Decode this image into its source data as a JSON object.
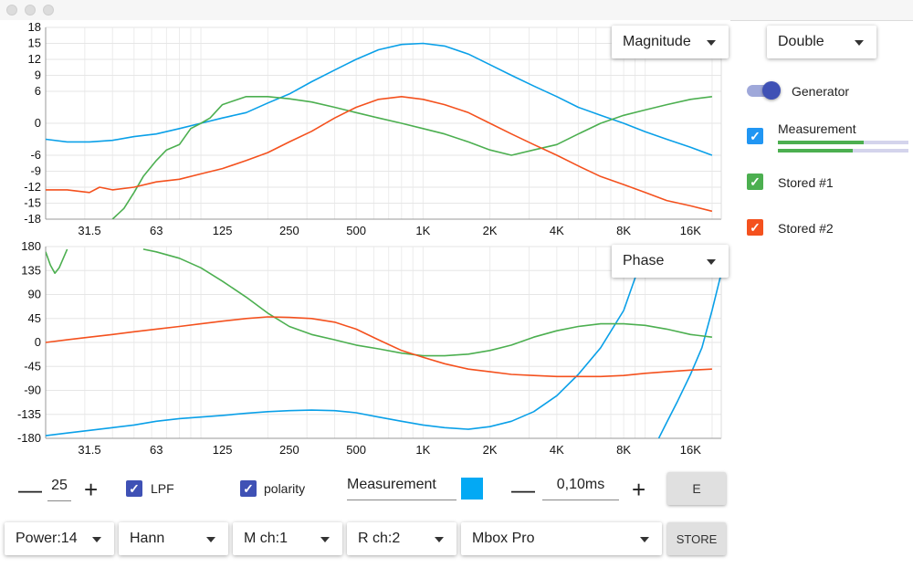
{
  "window": {
    "title": ""
  },
  "colors": {
    "measurement": "#0aa0e8",
    "stored1": "#4caf50",
    "stored2": "#f4511e",
    "checkbox_blue": "#2196f3",
    "checkbox_indigo": "#3f51b5",
    "swatch": "#03a9f4"
  },
  "magnitude_plot": {
    "view_dropdown": "Magnitude",
    "y_ticks": [
      "18",
      "15",
      "12",
      "9",
      "6",
      "0",
      "-6",
      "-9",
      "-12",
      "-15",
      "-18"
    ],
    "x_ticks": [
      "31.5",
      "63",
      "125",
      "250",
      "500",
      "1K",
      "2K",
      "4K",
      "8K",
      "16K"
    ]
  },
  "phase_plot": {
    "view_dropdown": "Phase",
    "y_ticks": [
      "180",
      "135",
      "90",
      "45",
      "0",
      "-45",
      "-90",
      "-135",
      "-180"
    ],
    "x_ticks": [
      "31.5",
      "63",
      "125",
      "250",
      "500",
      "1K",
      "2K",
      "4K",
      "8K",
      "16K"
    ]
  },
  "chart_data": [
    {
      "type": "line",
      "title": "",
      "x_scale": "log",
      "xlim": [
        20,
        22000
      ],
      "ylim": [
        -18,
        18
      ],
      "series": [
        {
          "name": "Measurement",
          "color": "#0aa0e8",
          "x": [
            20,
            25,
            31.5,
            40,
            50,
            63,
            80,
            100,
            125,
            160,
            200,
            250,
            315,
            400,
            500,
            630,
            800,
            1000,
            1250,
            1600,
            2000,
            2500,
            3150,
            4000,
            5000,
            6300,
            8000,
            10000,
            12500,
            16000,
            20000
          ],
          "y": [
            -3,
            -3.5,
            -3.5,
            -3.2,
            -2.5,
            -2,
            -1,
            0,
            1,
            2,
            3.8,
            5.5,
            7.8,
            10,
            12,
            13.8,
            14.8,
            15,
            14.5,
            13,
            11,
            9,
            7,
            5,
            3,
            1.5,
            0,
            -1.6,
            -3,
            -4.5,
            -6
          ]
        },
        {
          "name": "Stored #1",
          "color": "#4caf50",
          "x": [
            40,
            45,
            50,
            55,
            63,
            70,
            80,
            90,
            100,
            110,
            125,
            140,
            160,
            200,
            250,
            315,
            400,
            500,
            630,
            800,
            1000,
            1250,
            1600,
            2000,
            2500,
            3150,
            4000,
            5000,
            6300,
            8000,
            10000,
            12500,
            16000,
            20000
          ],
          "y": [
            -18,
            -16,
            -13,
            -10,
            -7,
            -5,
            -4,
            -1,
            0,
            1,
            3.5,
            4.2,
            5,
            5,
            4.6,
            4,
            3,
            2,
            1,
            0,
            -1,
            -2,
            -3.5,
            -5,
            -6,
            -5,
            -4,
            -2,
            0,
            1.5,
            2.5,
            3.5,
            4.5,
            5
          ]
        },
        {
          "name": "Stored #2",
          "color": "#f4511e",
          "x": [
            20,
            25,
            31.5,
            35,
            40,
            50,
            63,
            80,
            100,
            125,
            160,
            200,
            250,
            315,
            400,
            500,
            630,
            800,
            1000,
            1250,
            1600,
            2000,
            2500,
            3150,
            4000,
            5000,
            6300,
            8000,
            10000,
            12500,
            16000,
            20000
          ],
          "y": [
            -12.5,
            -12.5,
            -13,
            -12,
            -12.5,
            -12,
            -11,
            -10.5,
            -9.5,
            -8.5,
            -7,
            -5.5,
            -3.5,
            -1.5,
            1,
            3,
            4.5,
            5,
            4.5,
            3.5,
            2,
            0,
            -2,
            -4,
            -6,
            -8,
            -10,
            -11.5,
            -13,
            -14.5,
            -15.5,
            -16.5
          ]
        }
      ]
    },
    {
      "type": "line",
      "title": "",
      "x_scale": "log",
      "xlim": [
        20,
        22000
      ],
      "ylim": [
        -180,
        180
      ],
      "series": [
        {
          "name": "Measurement",
          "color": "#0aa0e8",
          "x": [
            20,
            25,
            31.5,
            40,
            50,
            63,
            80,
            100,
            125,
            160,
            200,
            250,
            315,
            400,
            500,
            630,
            800,
            1000,
            1250,
            1600,
            2000,
            2500,
            3150,
            4000,
            5000,
            6300,
            8000,
            10000
          ],
          "y": [
            -175,
            -170,
            -165,
            -160,
            -155,
            -148,
            -143,
            -140,
            -137,
            -133,
            -130,
            -128,
            -127,
            -128,
            -132,
            -140,
            -148,
            -155,
            -160,
            -163,
            -158,
            -148,
            -130,
            -100,
            -60,
            -10,
            60,
            175
          ]
        },
        {
          "name": "Measurement (wrapped)",
          "color": "#0aa0e8",
          "x": [
            11500,
            12500,
            14000,
            16000,
            18000,
            20000,
            22000
          ],
          "y": [
            -180,
            -150,
            -110,
            -60,
            -10,
            60,
            130
          ]
        },
        {
          "name": "Stored #1",
          "color": "#4caf50",
          "x": [
            20,
            21,
            22,
            23,
            25
          ],
          "y": [
            170,
            145,
            130,
            140,
            175
          ]
        },
        {
          "name": "Stored #1",
          "color": "#4caf50",
          "x": [
            55,
            63,
            80,
            100,
            125,
            160,
            200,
            250,
            315,
            400,
            500,
            630,
            800,
            1000,
            1250,
            1600,
            2000,
            2500,
            3150,
            4000,
            5000,
            6300,
            8000,
            10000,
            12500,
            16000,
            20000
          ],
          "y": [
            175,
            170,
            158,
            140,
            115,
            85,
            55,
            30,
            15,
            5,
            -5,
            -12,
            -20,
            -25,
            -25,
            -22,
            -15,
            -5,
            10,
            22,
            30,
            35,
            35,
            32,
            25,
            15,
            10
          ]
        },
        {
          "name": "Stored #2",
          "color": "#f4511e",
          "x": [
            20,
            25,
            31.5,
            40,
            50,
            63,
            80,
            100,
            125,
            160,
            200,
            250,
            315,
            400,
            500,
            630,
            800,
            1000,
            1250,
            1600,
            2000,
            2500,
            3150,
            4000,
            5000,
            6300,
            8000,
            10000,
            12500,
            16000,
            20000
          ],
          "y": [
            0,
            5,
            10,
            15,
            20,
            25,
            30,
            35,
            40,
            45,
            48,
            47,
            45,
            38,
            25,
            5,
            -15,
            -28,
            -40,
            -50,
            -55,
            -60,
            -62,
            -64,
            -64,
            -64,
            -62,
            -58,
            -55,
            -52,
            -50
          ]
        }
      ]
    }
  ],
  "right_panel": {
    "mode_dropdown": "Double",
    "generator_label": "Generator",
    "generator_on": true,
    "measurement_label": "Measurement",
    "measurement_checked": true,
    "meter_levels": [
      0.66,
      0.57
    ],
    "stored1_label": "Stored #1",
    "stored1_checked": true,
    "stored2_label": "Stored #2",
    "stored2_checked": true
  },
  "controls": {
    "minus": "—",
    "plus": "+",
    "averaging_value": "25",
    "lpf_label": "LPF",
    "lpf_checked": true,
    "polarity_label": "polarity",
    "polarity_checked": true,
    "name_field_value": "Measurement",
    "delay_value": "0,10ms",
    "e_button": "E"
  },
  "bottom_bar": {
    "power": "Power:14",
    "window_fn": "Hann",
    "m_channel": "M ch:1",
    "r_channel": "R ch:2",
    "device": "Mbox Pro",
    "store_button": "STORE"
  }
}
